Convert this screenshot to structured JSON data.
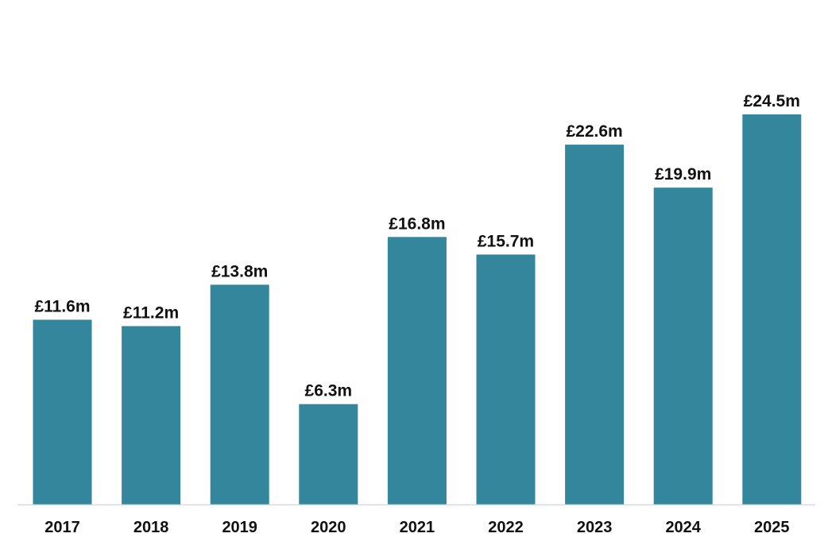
{
  "chart_data": {
    "type": "bar",
    "categories": [
      "2017",
      "2018",
      "2019",
      "2020",
      "2021",
      "2022",
      "2023",
      "2024",
      "2025"
    ],
    "values": [
      11.6,
      11.2,
      13.8,
      6.3,
      16.8,
      15.7,
      22.6,
      19.9,
      24.5
    ],
    "data_labels": [
      "£11.6m",
      "£11.2m",
      "£13.8m",
      "£6.3m",
      "£16.8m",
      "£15.7m",
      "£22.6m",
      "£19.9m",
      "£24.5m"
    ],
    "ylim": [
      0,
      24.5
    ],
    "grid": false,
    "legend": "none",
    "colors": {
      "bar": "#33869c",
      "axis": "#d9d9d9"
    }
  }
}
